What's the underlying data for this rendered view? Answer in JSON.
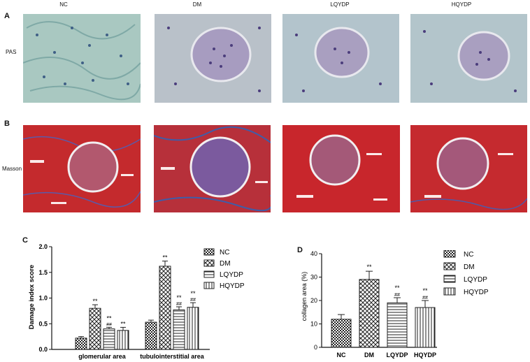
{
  "panel_labels": {
    "a": "A",
    "b": "B",
    "c": "C",
    "d": "D"
  },
  "column_headers": [
    "NC",
    "DM",
    "LQYDP",
    "HQYDP"
  ],
  "row_labels": {
    "pas": "PAS",
    "masson": "Masson"
  },
  "colors": {
    "pas_bg": "#a9c7c2",
    "masson_bg": "#c62a2a",
    "bar_stroke": "#222222"
  },
  "chart_data": [
    {
      "type": "bar",
      "ylabel": "Damage index score",
      "ylim": [
        0,
        2.0
      ],
      "yticks": [
        "0.0",
        "0.5",
        "1.0",
        "1.5",
        "2.0"
      ],
      "categories": [
        "glomerular area",
        "tubulointerstitial area"
      ],
      "series": [
        {
          "name": "NC",
          "values": [
            0.22,
            0.53
          ],
          "err": [
            0.03,
            0.04
          ],
          "ann1": [
            "",
            ""
          ],
          "ann2": [
            "",
            ""
          ]
        },
        {
          "name": "DM",
          "values": [
            0.8,
            1.62
          ],
          "err": [
            0.07,
            0.1
          ],
          "ann1": [
            "**",
            "**"
          ],
          "ann2": [
            "",
            ""
          ]
        },
        {
          "name": "LQYDP",
          "values": [
            0.4,
            0.77
          ],
          "err": [
            0.03,
            0.06
          ],
          "ann1": [
            "**",
            "**"
          ],
          "ann2": [
            "##",
            "##"
          ]
        },
        {
          "name": "HQYDP",
          "values": [
            0.37,
            0.82
          ],
          "err": [
            0.06,
            0.09
          ],
          "ann1": [
            "**",
            "**"
          ],
          "ann2": [
            "",
            "##"
          ]
        }
      ],
      "legend": "right"
    },
    {
      "type": "bar",
      "ylabel": "collagen area (%)",
      "ylim": [
        0,
        40
      ],
      "yticks": [
        "0",
        "10",
        "20",
        "30",
        "40"
      ],
      "categories": [
        "NC",
        "DM",
        "LQYDP",
        "HQYDP"
      ],
      "values": [
        12,
        29,
        19,
        17
      ],
      "err": [
        2,
        3.5,
        2.2,
        3
      ],
      "ann1": [
        "",
        "**",
        "**",
        "**"
      ],
      "ann2": [
        "",
        "",
        "##",
        "##"
      ],
      "legend_entries": [
        "NC",
        "DM",
        "LQYDP",
        "HQYDP"
      ],
      "legend": "right"
    }
  ]
}
